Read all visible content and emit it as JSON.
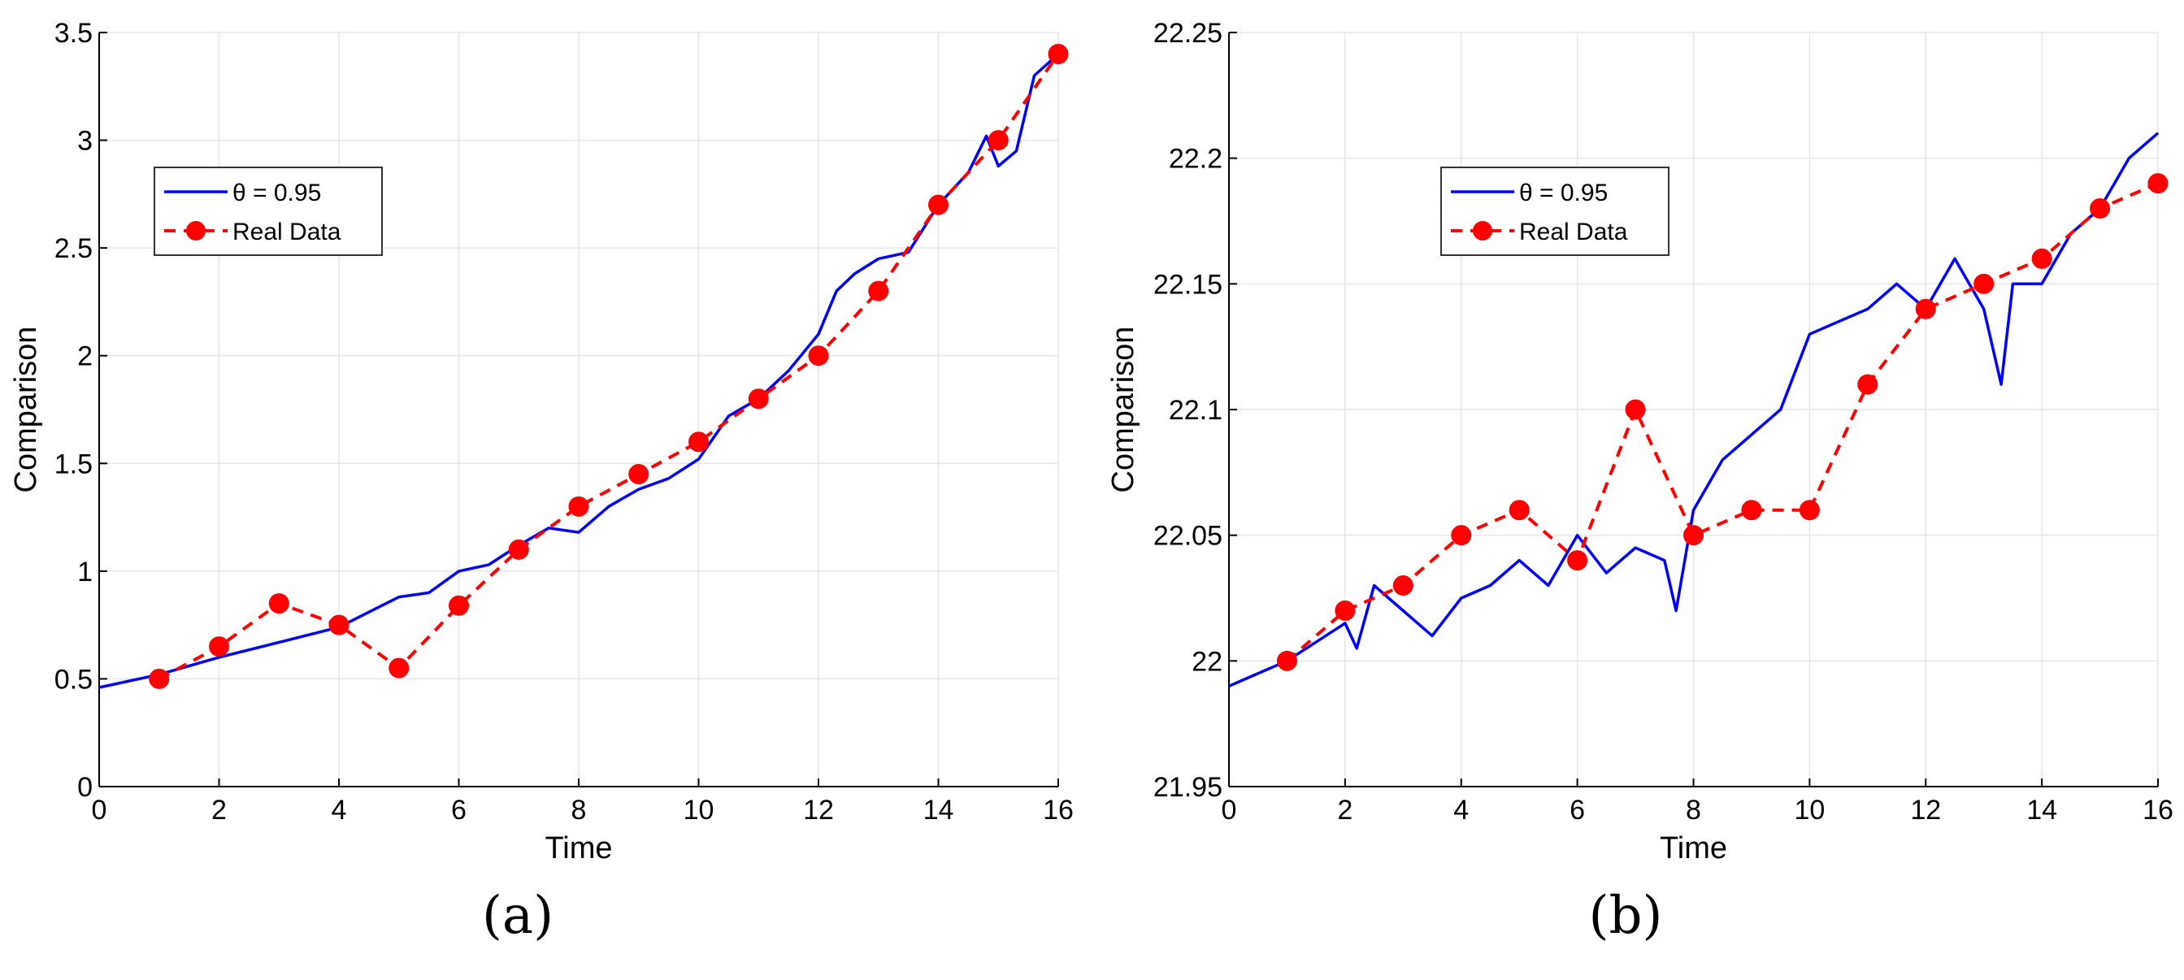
{
  "chart_data": [
    {
      "panel": "(a)",
      "type": "line",
      "xlabel": "Time",
      "ylabel": "Comparison",
      "xlim": [
        0,
        16
      ],
      "ylim": [
        0,
        3.5
      ],
      "xticks": [
        "0",
        "2",
        "4",
        "6",
        "8",
        "10",
        "12",
        "14",
        "16"
      ],
      "yticks": [
        "0",
        "0.5",
        "1",
        "1.5",
        "2",
        "2.5",
        "3",
        "3.5"
      ],
      "grid": true,
      "legend_position": "upper-left",
      "series": [
        {
          "name": "θ = 0.95",
          "style": "solid",
          "color": "#0000ff",
          "x": [
            0,
            1,
            2,
            3,
            4,
            4.5,
            5,
            5.5,
            6,
            6.5,
            7,
            7.5,
            8,
            8.5,
            9,
            9.5,
            10,
            10.5,
            11,
            11.5,
            12,
            12.3,
            12.6,
            13,
            13.5,
            14,
            14.5,
            14.8,
            15,
            15.3,
            15.6,
            16
          ],
          "y": [
            0.46,
            0.52,
            0.6,
            0.67,
            0.74,
            0.81,
            0.88,
            0.9,
            1.0,
            1.03,
            1.12,
            1.2,
            1.18,
            1.3,
            1.38,
            1.43,
            1.52,
            1.72,
            1.8,
            1.93,
            2.1,
            2.3,
            2.38,
            2.45,
            2.48,
            2.7,
            2.85,
            3.02,
            2.88,
            2.95,
            3.3,
            3.4
          ]
        },
        {
          "name": "Real Data",
          "style": "dashed",
          "marker": "circle",
          "color": "#ff0000",
          "x": [
            1,
            2,
            3,
            4,
            5,
            6,
            7,
            8,
            9,
            10,
            11,
            12,
            13,
            14,
            15,
            16
          ],
          "y": [
            0.5,
            0.65,
            0.85,
            0.75,
            0.55,
            0.84,
            1.1,
            1.3,
            1.45,
            1.6,
            1.8,
            2.0,
            2.3,
            2.7,
            3.0,
            3.4
          ]
        }
      ]
    },
    {
      "panel": "(b)",
      "type": "line",
      "xlabel": "Time",
      "ylabel": "Comparison",
      "xlim": [
        0,
        16
      ],
      "ylim": [
        21.95,
        22.25
      ],
      "xticks": [
        "0",
        "2",
        "4",
        "6",
        "8",
        "10",
        "12",
        "14",
        "16"
      ],
      "yticks": [
        "21.95",
        "22",
        "22.05",
        "22.1",
        "22.15",
        "22.2",
        "22.25"
      ],
      "grid": true,
      "legend_position": "upper-left",
      "series": [
        {
          "name": "θ = 0.95",
          "style": "solid",
          "color": "#0000ff",
          "x": [
            0,
            1,
            2,
            2.2,
            2.5,
            3,
            3.5,
            4,
            4.5,
            5,
            5.5,
            6,
            6.5,
            7,
            7.5,
            7.7,
            8,
            8.5,
            9,
            9.5,
            10,
            10.5,
            11,
            11.5,
            12,
            12.5,
            13,
            13.3,
            13.5,
            14,
            14.5,
            15,
            15.5,
            16
          ],
          "y": [
            21.99,
            22.0,
            22.015,
            22.005,
            22.03,
            22.02,
            22.01,
            22.025,
            22.03,
            22.04,
            22.03,
            22.05,
            22.035,
            22.045,
            22.04,
            22.02,
            22.06,
            22.08,
            22.09,
            22.1,
            22.13,
            22.135,
            22.14,
            22.15,
            22.14,
            22.16,
            22.14,
            22.11,
            22.15,
            22.15,
            22.17,
            22.18,
            22.2,
            22.21
          ]
        },
        {
          "name": "Real Data",
          "style": "dashed",
          "marker": "circle",
          "color": "#ff0000",
          "x": [
            1,
            2,
            3,
            4,
            5,
            6,
            7,
            8,
            9,
            10,
            11,
            12,
            13,
            14,
            15,
            16
          ],
          "y": [
            22.0,
            22.02,
            22.03,
            22.05,
            22.06,
            22.04,
            22.1,
            22.05,
            22.06,
            22.06,
            22.11,
            22.14,
            22.15,
            22.16,
            22.18,
            22.19
          ]
        }
      ]
    }
  ]
}
